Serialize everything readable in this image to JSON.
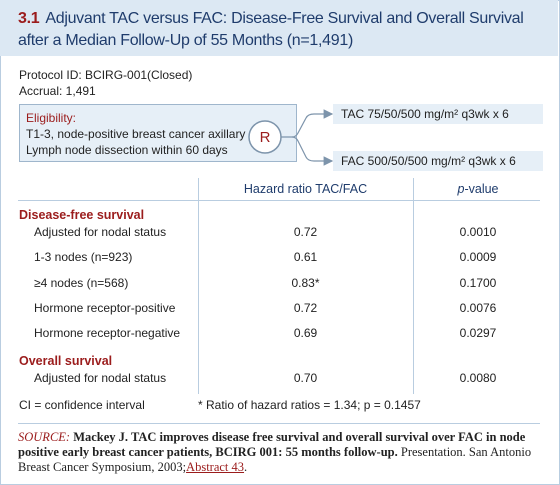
{
  "header": {
    "number": "3.1",
    "title": "Adjuvant TAC versus FAC: Disease-Free Survival and Overall Survival after a Median Follow-Up of 55 Months (n=1,491)"
  },
  "protocol": {
    "lines": [
      "Protocol ID:  BCIRG-001(Closed)",
      "Accrual:  1,491"
    ]
  },
  "eligibility": {
    "label": "Eligibility:",
    "lines": [
      "T1-3, node-positive breast cancer axillary",
      "Lymph node dissection within 60 days"
    ]
  },
  "randomization": "R",
  "arms": [
    "TAC  75/50/500 mg/m² q3wk x 6",
    "FAC  500/50/500 mg/m² q3wk x 6"
  ],
  "table": {
    "columns": [
      "Hazard ratio TAC/FAC",
      "p-value"
    ],
    "sections": [
      {
        "heading": "Disease-free survival",
        "rows": [
          {
            "label": "Adjusted for nodal status",
            "hr": "0.72",
            "p": "0.0010"
          },
          {
            "label": "1-3 nodes (n=923)",
            "hr": "0.61",
            "p": "0.0009"
          },
          {
            "label": "≥4 nodes (n=568)",
            "hr": "0.83*",
            "p": "0.1700"
          },
          {
            "label": "Hormone receptor-positive",
            "hr": "0.72",
            "p": "0.0076"
          },
          {
            "label": "Hormone receptor-negative",
            "hr": "0.69",
            "p": "0.0297"
          }
        ]
      },
      {
        "heading": "Overall survival",
        "rows": [
          {
            "label": "Adjusted for nodal status",
            "hr": "0.70",
            "p": "0.0080"
          }
        ]
      }
    ]
  },
  "footnotes": [
    "CI = confidence interval",
    "* Ratio of hazard ratios = 1.34; p = 0.1457"
  ],
  "source": {
    "label": "SOURCE:",
    "citation": "Mackey J. TAC improves disease free survival and overall survival over FAC in node positive early breast cancer patients, BCIRG 001: 55 months follow-up.",
    "details": " Presentation. San Antonio Breast Cancer Symposium, 2003;",
    "link": "Abstract 43",
    "end": "."
  }
}
